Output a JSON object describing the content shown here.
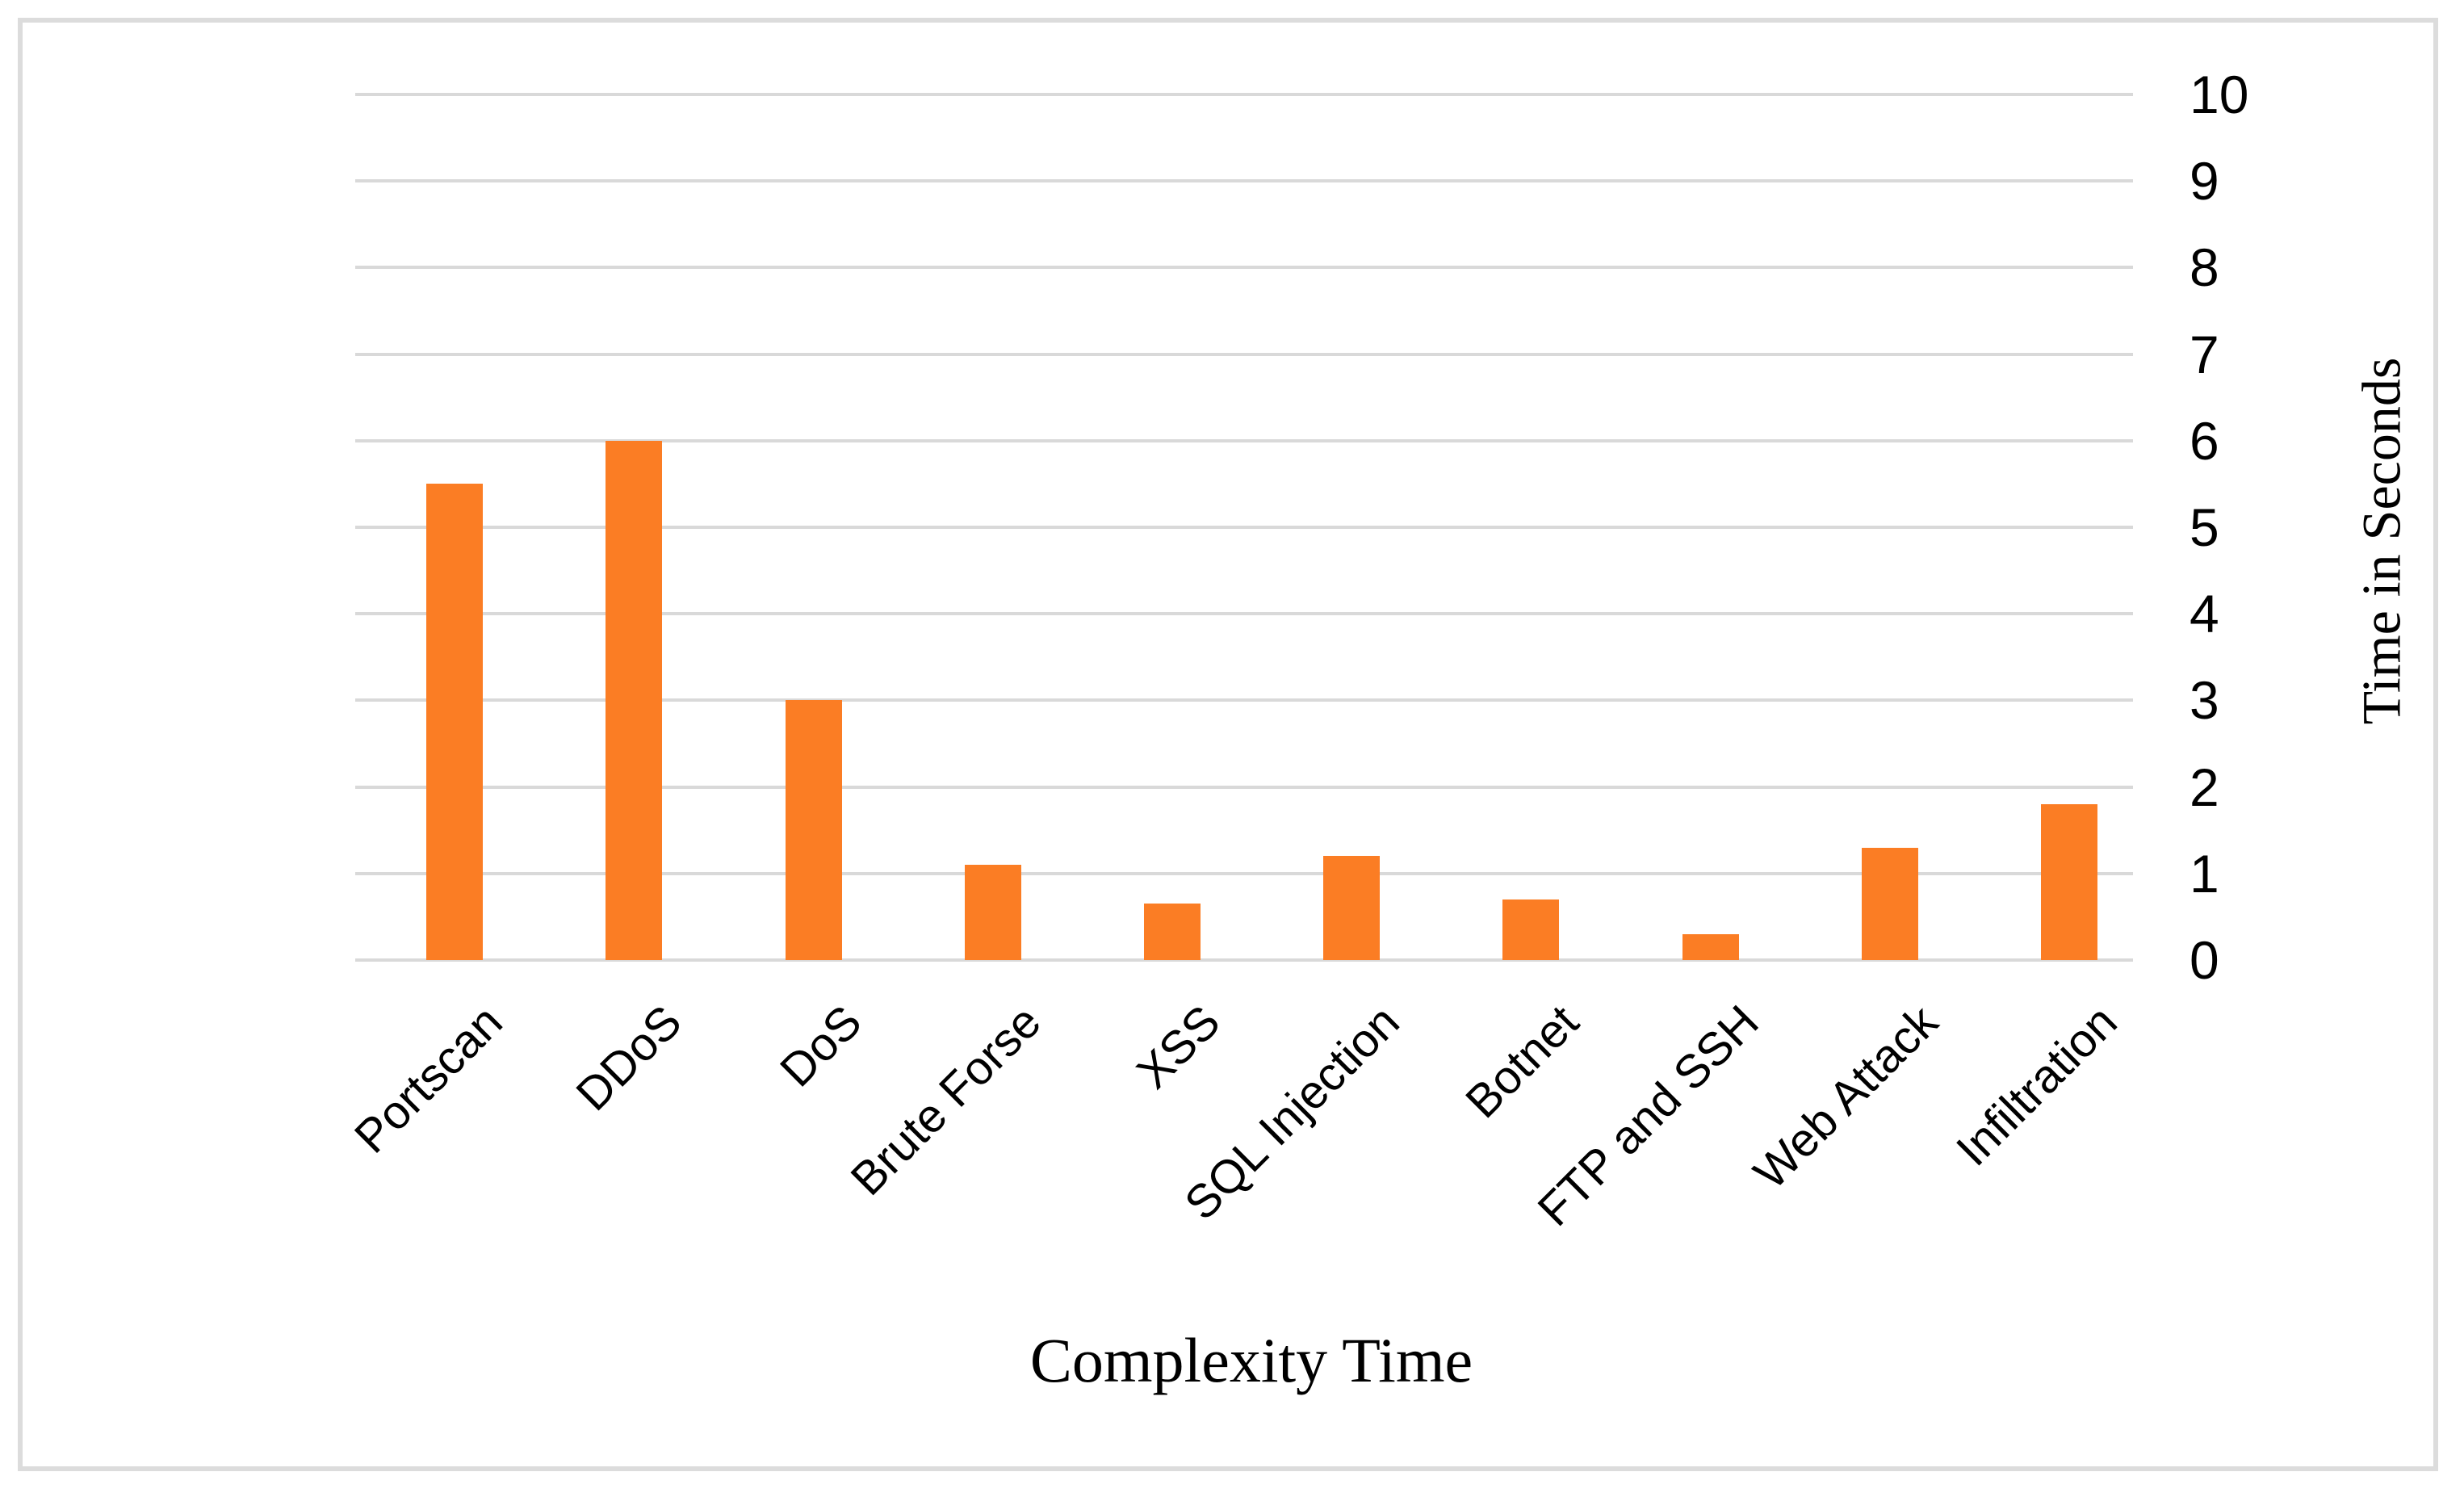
{
  "chart_data": {
    "type": "bar",
    "title": "",
    "xlabel": "Complexity Time",
    "ylabel": "Time in Seconds",
    "categories": [
      "Portscan",
      "DDoS",
      "DoS",
      "Brute Forse",
      "XSS",
      "SQL Injection",
      "Botnet",
      "FTP and SSH",
      "Web Attack",
      "Infiltration"
    ],
    "values": [
      5.5,
      6,
      3,
      1.1,
      0.65,
      1.2,
      0.7,
      0.3,
      1.3,
      1.8
    ],
    "ylim": [
      0,
      10
    ],
    "y_ticks": [
      "0",
      "1",
      "2",
      "3",
      "4",
      "5",
      "6",
      "7",
      "8",
      "9",
      "10"
    ],
    "grid": "horizontal",
    "legend": "none",
    "bar_color": "#FB7D24",
    "gridline_color": "#D9D9D9",
    "border_color": "#DCDCDC",
    "text_color": "#000000"
  }
}
